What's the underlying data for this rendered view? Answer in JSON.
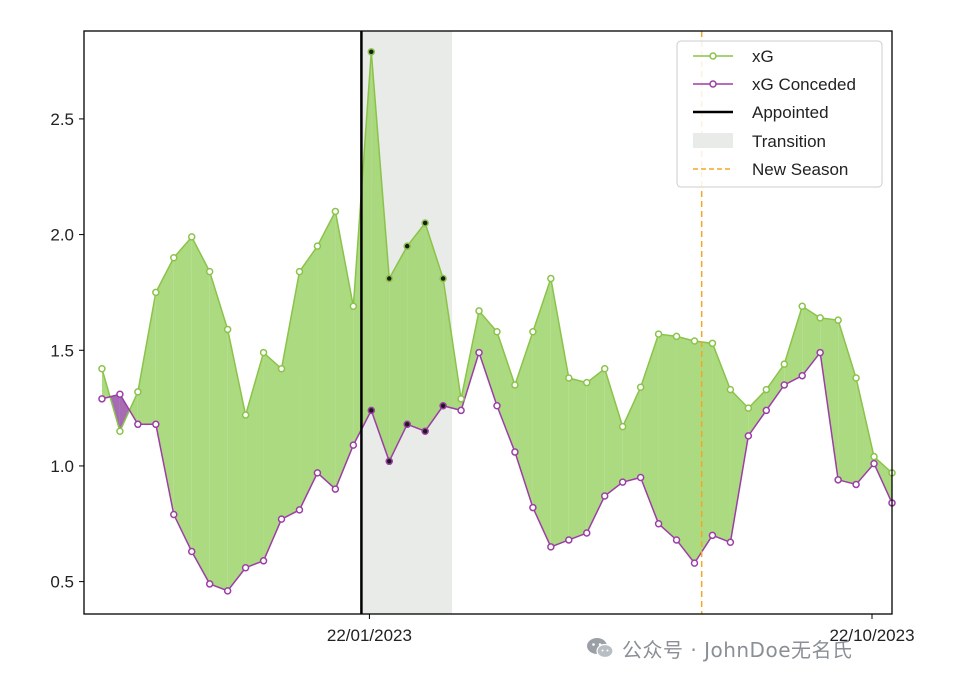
{
  "chart_data": {
    "type": "line",
    "x_tick_labels": [
      "22/01/2023",
      "22/10/2023"
    ],
    "y_ticks": [
      0.5,
      1.0,
      1.5,
      2.0,
      2.5
    ],
    "y_tick_labels": [
      "0.5",
      "1.0",
      "1.5",
      "2.0",
      "2.5"
    ],
    "ylim": [
      0.36,
      2.88
    ],
    "x_index_range": [
      -1,
      44
    ],
    "grid": false,
    "legend_position": "top-right",
    "series": [
      {
        "name": "xG",
        "color": "#8bc34a",
        "values": [
          1.42,
          1.15,
          1.32,
          1.75,
          1.9,
          1.99,
          1.84,
          1.59,
          1.22,
          1.49,
          1.42,
          1.84,
          1.95,
          2.1,
          1.69,
          2.79,
          1.81,
          1.95,
          2.05,
          1.81,
          1.29,
          1.67,
          1.58,
          1.35,
          1.58,
          1.81,
          1.38,
          1.36,
          1.42,
          1.17,
          1.34,
          1.57,
          1.56,
          1.54,
          1.53,
          1.33,
          1.25,
          1.33,
          1.44,
          1.69,
          1.64,
          1.63,
          1.38,
          1.04,
          0.97
        ]
      },
      {
        "name": "xG Conceded",
        "color": "#9c3ea6",
        "values": [
          1.29,
          1.31,
          1.18,
          1.18,
          0.79,
          0.63,
          0.49,
          0.46,
          0.56,
          0.59,
          0.77,
          0.81,
          0.97,
          0.9,
          1.09,
          1.24,
          1.02,
          1.18,
          1.15,
          1.26,
          1.24,
          1.49,
          1.26,
          1.06,
          0.82,
          0.65,
          0.68,
          0.71,
          0.87,
          0.93,
          0.95,
          0.75,
          0.68,
          0.58,
          0.7,
          0.67,
          1.13,
          1.24,
          1.35,
          1.39,
          1.49,
          0.94,
          0.92,
          1.01,
          0.84
        ]
      }
    ],
    "markers": {
      "appointed_index": 14.45,
      "transition_range": [
        14.45,
        19.5
      ],
      "new_season_index": 33.4
    },
    "legend": {
      "xg": "xG",
      "xg_conceded": "xG Conceded",
      "appointed": "Appointed",
      "transition": "Transition",
      "new_season": "New Season"
    },
    "colors": {
      "xg": "#8bc34a",
      "xg_fill": "#a3d672",
      "xg_conceded": "#9c3ea6",
      "conceded_above_fill": "#9c5bab",
      "appointed": "#000000",
      "transition": "#e8ebe8",
      "new_season": "#f5a623"
    }
  },
  "watermark": {
    "text": "公众号 · JohnDoe无名氏",
    "icon": "wechat-icon"
  }
}
